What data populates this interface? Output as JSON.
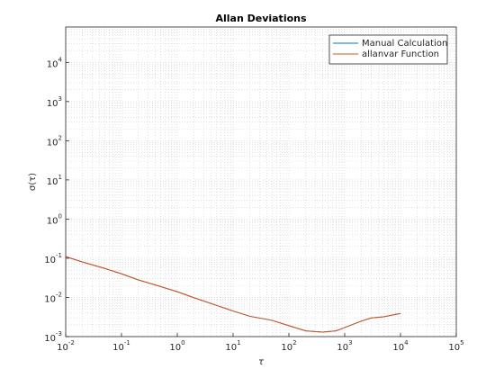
{
  "chart_data": {
    "type": "line",
    "title": "Allan Deviations",
    "xlabel": "τ",
    "ylabel": "σ(τ)",
    "log_x": true,
    "log_y": true,
    "grid": true,
    "minor_grid": true,
    "legend": "northeast",
    "xlim": [
      0.01,
      100000
    ],
    "ylim": [
      0.001,
      80000
    ],
    "xticks": [
      {
        "value": 0.01,
        "label": "10^-2"
      },
      {
        "value": 0.1,
        "label": "10^-1"
      },
      {
        "value": 1,
        "label": "10^0"
      },
      {
        "value": 10,
        "label": "10^1"
      },
      {
        "value": 100,
        "label": "10^2"
      },
      {
        "value": 1000,
        "label": "10^3"
      },
      {
        "value": 10000,
        "label": "10^4"
      },
      {
        "value": 100000,
        "label": "10^5"
      }
    ],
    "yticks": [
      {
        "value": 0.001,
        "label": "10^-3"
      },
      {
        "value": 0.01,
        "label": "10^-2"
      },
      {
        "value": 0.1,
        "label": "10^-1"
      },
      {
        "value": 1,
        "label": "10^0"
      },
      {
        "value": 10,
        "label": "10^1"
      },
      {
        "value": 100,
        "label": "10^2"
      },
      {
        "value": 1000,
        "label": "10^3"
      },
      {
        "value": 10000,
        "label": "10^4"
      }
    ],
    "x": [
      0.01,
      0.02,
      0.05,
      0.1,
      0.2,
      0.5,
      1,
      2,
      5,
      10,
      20,
      50,
      100,
      200,
      400,
      700,
      1000,
      2000,
      3000,
      5000,
      10000
    ],
    "series": [
      {
        "name": "Manual Calculation",
        "color": "#0072BD",
        "values": [
          0.11,
          0.08,
          0.055,
          0.04,
          0.028,
          0.019,
          0.014,
          0.0098,
          0.0063,
          0.0045,
          0.0033,
          0.0026,
          0.0019,
          0.0014,
          0.0013,
          0.0014,
          0.0017,
          0.0025,
          0.003,
          0.0032,
          0.0039
        ]
      },
      {
        "name": "allanvar Function",
        "color": "#D95319",
        "values": [
          0.11,
          0.08,
          0.055,
          0.04,
          0.028,
          0.019,
          0.014,
          0.0098,
          0.0063,
          0.0045,
          0.0033,
          0.0026,
          0.0019,
          0.0014,
          0.0013,
          0.0014,
          0.0017,
          0.0025,
          0.003,
          0.0032,
          0.0039
        ]
      }
    ]
  }
}
